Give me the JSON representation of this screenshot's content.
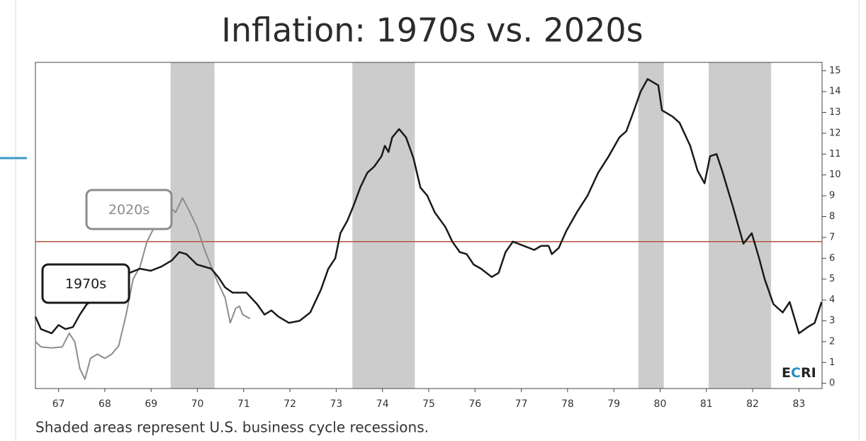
{
  "chart_data": {
    "type": "line",
    "title": "Inflation: 1970s vs. 2020s",
    "footnote": "Shaded areas represent U.S. business cycle recessions.",
    "logo": [
      "E",
      "C",
      "RI"
    ],
    "logo_colors": [
      "#222222",
      "#2a8fc4",
      "#222222"
    ],
    "xlim": [
      1967,
      1984
    ],
    "xticks": [
      {
        "value": 1967.5,
        "label": "67"
      },
      {
        "value": 1968.5,
        "label": "68"
      },
      {
        "value": 1969.5,
        "label": "69"
      },
      {
        "value": 1970.5,
        "label": "70"
      },
      {
        "value": 1971.5,
        "label": "71"
      },
      {
        "value": 1972.5,
        "label": "72"
      },
      {
        "value": 1973.5,
        "label": "73"
      },
      {
        "value": 1974.5,
        "label": "74"
      },
      {
        "value": 1975.5,
        "label": "75"
      },
      {
        "value": 1976.5,
        "label": "76"
      },
      {
        "value": 1977.5,
        "label": "77"
      },
      {
        "value": 1978.5,
        "label": "78"
      },
      {
        "value": 1979.5,
        "label": "79"
      },
      {
        "value": 1980.5,
        "label": "80"
      },
      {
        "value": 1981.5,
        "label": "81"
      },
      {
        "value": 1982.5,
        "label": "82"
      },
      {
        "value": 1983.5,
        "label": "83"
      }
    ],
    "ylim": [
      -0.25,
      15.4
    ],
    "yticks": [
      0,
      1,
      2,
      3,
      4,
      5,
      6,
      7,
      8,
      9,
      10,
      11,
      12,
      13,
      14,
      15
    ],
    "recessions": [
      [
        1969.92,
        1970.87
      ],
      [
        1973.85,
        1975.2
      ],
      [
        1980.03,
        1980.58
      ],
      [
        1981.55,
        1982.9
      ]
    ],
    "recession_color": "#cccccc",
    "reference_line": 6.8,
    "reference_color": "#b5533c",
    "series": [
      {
        "name": "1970s",
        "color": "#1a1a1a",
        "x": [
          1967.0,
          1967.12,
          1967.35,
          1967.5,
          1967.65,
          1967.81,
          1967.96,
          1968.11,
          1968.34,
          1968.57,
          1968.8,
          1969.03,
          1969.26,
          1969.49,
          1969.72,
          1969.95,
          1970.11,
          1970.26,
          1970.49,
          1970.8,
          1970.95,
          1971.1,
          1971.26,
          1971.56,
          1971.79,
          1971.95,
          1972.1,
          1972.25,
          1972.48,
          1972.71,
          1972.94,
          1973.17,
          1973.33,
          1973.48,
          1973.59,
          1973.74,
          1973.87,
          1974.02,
          1974.17,
          1974.32,
          1974.48,
          1974.55,
          1974.63,
          1974.71,
          1974.86,
          1975.01,
          1975.17,
          1975.32,
          1975.47,
          1975.63,
          1975.86,
          1976.01,
          1976.17,
          1976.32,
          1976.47,
          1976.63,
          1976.86,
          1977.01,
          1977.16,
          1977.32,
          1977.55,
          1977.78,
          1977.93,
          1978.09,
          1978.16,
          1978.31,
          1978.47,
          1978.7,
          1978.93,
          1979.16,
          1979.39,
          1979.62,
          1979.77,
          1979.92,
          1980.08,
          1980.23,
          1980.46,
          1980.54,
          1980.77,
          1980.92,
          1981.15,
          1981.31,
          1981.46,
          1981.58,
          1981.72,
          1981.84,
          1982.07,
          1982.3,
          1982.48,
          1982.64,
          1982.76,
          1982.95,
          1983.15,
          1983.3,
          1983.5,
          1983.69,
          1983.84,
          1983.99
        ],
        "values": [
          3.2,
          2.6,
          2.4,
          2.8,
          2.6,
          2.7,
          3.3,
          3.8,
          4.1,
          4.5,
          5.0,
          5.3,
          5.5,
          5.4,
          5.6,
          5.9,
          6.3,
          6.2,
          5.7,
          5.5,
          5.1,
          4.6,
          4.35,
          4.35,
          3.8,
          3.3,
          3.5,
          3.2,
          2.9,
          3.0,
          3.4,
          4.5,
          5.5,
          6.0,
          7.2,
          7.8,
          8.5,
          9.4,
          10.1,
          10.4,
          10.9,
          11.4,
          11.1,
          11.8,
          12.2,
          11.8,
          10.8,
          9.4,
          9.0,
          8.2,
          7.5,
          6.8,
          6.3,
          6.2,
          5.7,
          5.5,
          5.1,
          5.3,
          6.3,
          6.8,
          6.6,
          6.4,
          6.6,
          6.6,
          6.2,
          6.5,
          7.3,
          8.2,
          9.0,
          10.1,
          10.9,
          11.8,
          12.1,
          13.0,
          14.0,
          14.6,
          14.3,
          13.1,
          12.8,
          12.5,
          11.4,
          10.2,
          9.6,
          10.9,
          11.0,
          10.2,
          8.5,
          6.7,
          7.2,
          6.0,
          5.0,
          3.8,
          3.4,
          3.9,
          2.4,
          2.7,
          2.9,
          3.9
        ]
      },
      {
        "name": "2020s",
        "color": "#8c8c8c",
        "x": [
          1967.0,
          1967.12,
          1967.35,
          1967.58,
          1967.73,
          1967.85,
          1967.96,
          1968.07,
          1968.19,
          1968.34,
          1968.5,
          1968.65,
          1968.8,
          1968.96,
          1969.11,
          1969.26,
          1969.41,
          1969.57,
          1969.72,
          1969.88,
          1970.03,
          1970.18,
          1970.34,
          1970.49,
          1970.64,
          1970.8,
          1970.95,
          1971.1,
          1971.21,
          1971.33,
          1971.41,
          1971.48,
          1971.64
        ],
        "values": [
          2.0,
          1.75,
          1.7,
          1.75,
          2.4,
          2.0,
          0.7,
          0.2,
          1.2,
          1.4,
          1.2,
          1.4,
          1.8,
          3.3,
          5.0,
          5.6,
          6.8,
          7.5,
          8.4,
          8.5,
          8.2,
          8.9,
          8.2,
          7.5,
          6.5,
          5.6,
          4.8,
          4.1,
          2.9,
          3.6,
          3.7,
          3.3,
          3.1
        ]
      }
    ]
  }
}
